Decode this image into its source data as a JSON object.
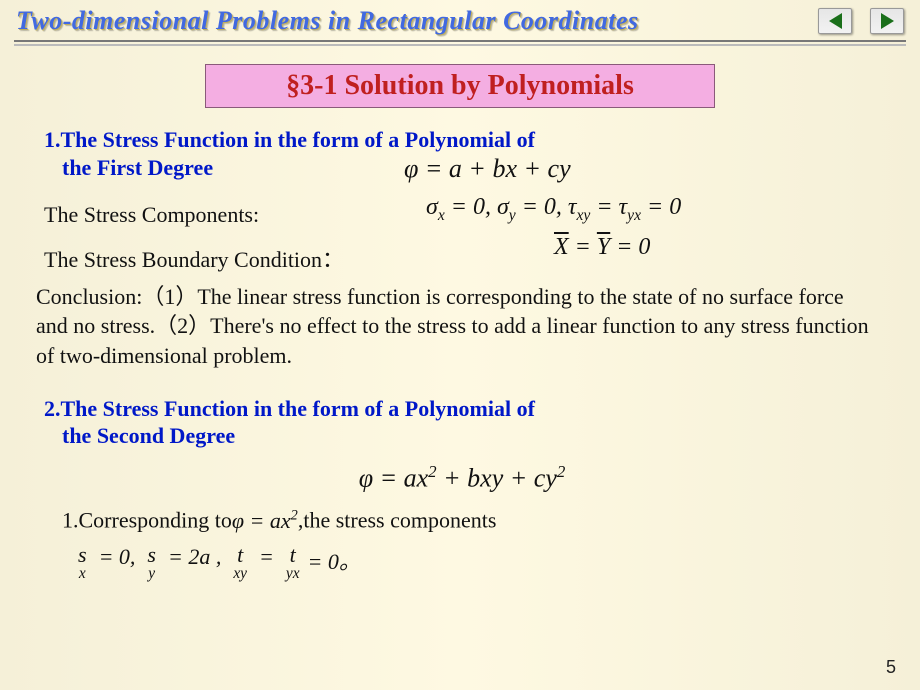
{
  "header": {
    "title": "Two-dimensional Problems in Rectangular Coordinates"
  },
  "section": {
    "label": "§3-1 Solution by Polynomials"
  },
  "heading1": {
    "line1": "1.The Stress Function in the form of a Polynomial of",
    "line2": "the First Degree"
  },
  "heading2": {
    "line1": "2.The Stress Function in the form of a Polynomial of",
    "line2": "the Second Degree"
  },
  "labels": {
    "stress_components": "The Stress Components:",
    "stress_boundary": "The Stress Boundary Condition：",
    "conclusion": "Conclusion:（1）The linear stress function is corresponding to the state of no surface force and no stress.（2）There's no effect to the stress to add a linear function to any stress function of two-dimensional problem.",
    "corresponding_prefix": "1.Corresponding to",
    "corresponding_suffix": ",the stress components"
  },
  "equations": {
    "phi_linear": "φ = a + bx + cy",
    "stress_zero": "σ<sub>x</sub> = 0, σ<sub>y</sub> = 0, τ<sub>xy</sub> = τ<sub>yx</sub> = 0",
    "boundary_zero": "<span class='bar'>X</span> = <span class='bar'>Y</span> = 0",
    "phi_quadratic": "φ = ax<sup>2</sup> + bxy + cy<sup>2</sup>",
    "phi_ax2": "φ = ax<sup>2</sup>"
  },
  "eq_result": {
    "sx_lhs": "s",
    "sx_sub": "x",
    "sx_rhs": "= 0,",
    "sy_lhs": "s",
    "sy_sub": "y",
    "sy_rhs": "= 2a ,",
    "txy_lhs": "t",
    "txy_sub": "xy",
    "txy_rhs": "=",
    "tyx_lhs": "t",
    "tyx_sub": "yx",
    "tyx_rhs": "= 0。"
  },
  "page_number": "5",
  "colors": {
    "title_color": "#4169E1",
    "section_bg": "#f4aee2",
    "section_text": "#c02020",
    "heading_color": "#0018c8"
  }
}
